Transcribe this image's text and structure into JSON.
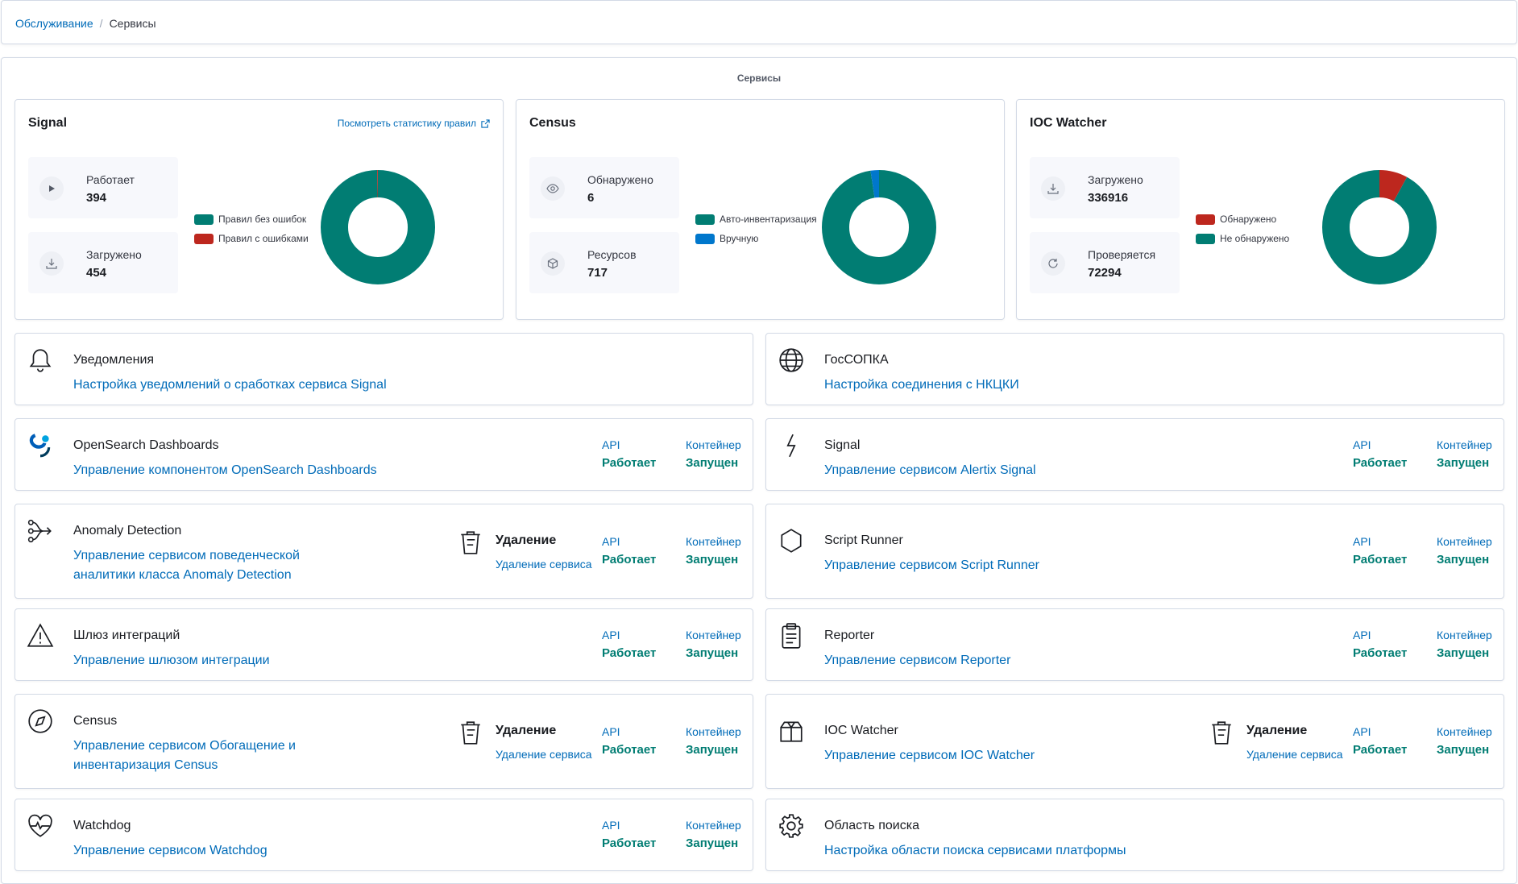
{
  "breadcrumb": {
    "parent": "Обслуживание",
    "separator": "/",
    "current": "Сервисы"
  },
  "section_title": "Сервисы",
  "colors": {
    "ok": "#017d73",
    "error": "#bd271e",
    "manual": "#0077cc",
    "link": "#006bb8"
  },
  "stats": {
    "signal": {
      "title": "Signal",
      "link": "Посмотреть статистику правил",
      "tiles": [
        {
          "icon": "play-icon",
          "label": "Работает",
          "value": "394"
        },
        {
          "icon": "download-icon",
          "label": "Загружено",
          "value": "454"
        }
      ],
      "legend": [
        {
          "label": "Правил без ошибок",
          "color": "#017d73"
        },
        {
          "label": "Правил с ошибками",
          "color": "#bd271e"
        }
      ],
      "donut_fractions": [
        0.997,
        0.003
      ]
    },
    "census": {
      "title": "Census",
      "tiles": [
        {
          "icon": "eye-icon",
          "label": "Обнаружено",
          "value": "6"
        },
        {
          "icon": "cube-icon",
          "label": "Ресурсов",
          "value": "717"
        }
      ],
      "legend": [
        {
          "label": "Авто-инвентаризация",
          "color": "#017d73"
        },
        {
          "label": "Вручную",
          "color": "#0077cc"
        }
      ],
      "donut_fractions": [
        0.975,
        0.025
      ]
    },
    "ioc": {
      "title": "IOC Watcher",
      "tiles": [
        {
          "icon": "download-icon",
          "label": "Загружено",
          "value": "336916"
        },
        {
          "icon": "refresh-icon",
          "label": "Проверяется",
          "value": "72294"
        }
      ],
      "legend": [
        {
          "label": "Обнаружено",
          "color": "#bd271e"
        },
        {
          "label": "Не обнаружено",
          "color": "#017d73"
        }
      ],
      "donut_fractions": [
        0.08,
        0.92
      ]
    }
  },
  "status_labels": {
    "api": "API",
    "api_value": "Работает",
    "container": "Контейнер",
    "container_value": "Запущен",
    "delete_title": "Удаление",
    "delete_desc": "Удаление сервиса"
  },
  "services": {
    "notifications": {
      "name": "Уведомления",
      "desc": "Настройка уведомлений о сработках сервиса Signal"
    },
    "gossopka": {
      "name": "ГосСОПКА",
      "desc": "Настройка соединения с НКЦКИ"
    },
    "opensearch": {
      "name": "OpenSearch Dashboards",
      "desc": "Управление компонентом OpenSearch Dashboards"
    },
    "signal": {
      "name": "Signal",
      "desc": "Управление сервисом Alertix Signal"
    },
    "anomaly": {
      "name": "Anomaly Detection",
      "desc_line1": "Управление сервисом поведенческой",
      "desc_line2": "аналитики класса Anomaly Detection"
    },
    "script_runner": {
      "name": "Script Runner",
      "desc": "Управление сервисом Script Runner"
    },
    "gateway": {
      "name": "Шлюз интеграций",
      "desc": "Управление шлюзом интеграции"
    },
    "reporter": {
      "name": "Reporter",
      "desc": "Управление сервисом Reporter"
    },
    "census": {
      "name": "Census",
      "desc_line1": "Управление сервисом Обогащение и",
      "desc_line2": "инвентаризация Census"
    },
    "ioc": {
      "name": "IOC Watcher",
      "desc": "Управление сервисом IOC Watcher"
    },
    "watchdog": {
      "name": "Watchdog",
      "desc": "Управление сервисом Watchdog"
    },
    "search_scope": {
      "name": "Область поиска",
      "desc": "Настройка области поиска сервисами платформы"
    }
  }
}
